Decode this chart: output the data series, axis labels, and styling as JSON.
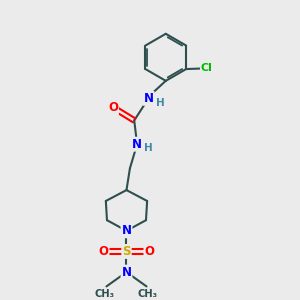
{
  "background_color": "#ebebeb",
  "bond_color": "#2f4f4f",
  "atom_colors": {
    "N": "#0000ff",
    "O": "#ff0000",
    "S": "#ccaa00",
    "Cl": "#00bb00",
    "C": "#2f4f4f",
    "H": "#4488aa"
  },
  "figsize": [
    3.0,
    3.0
  ],
  "dpi": 100,
  "xlim": [
    0,
    10
  ],
  "ylim": [
    0,
    10
  ]
}
